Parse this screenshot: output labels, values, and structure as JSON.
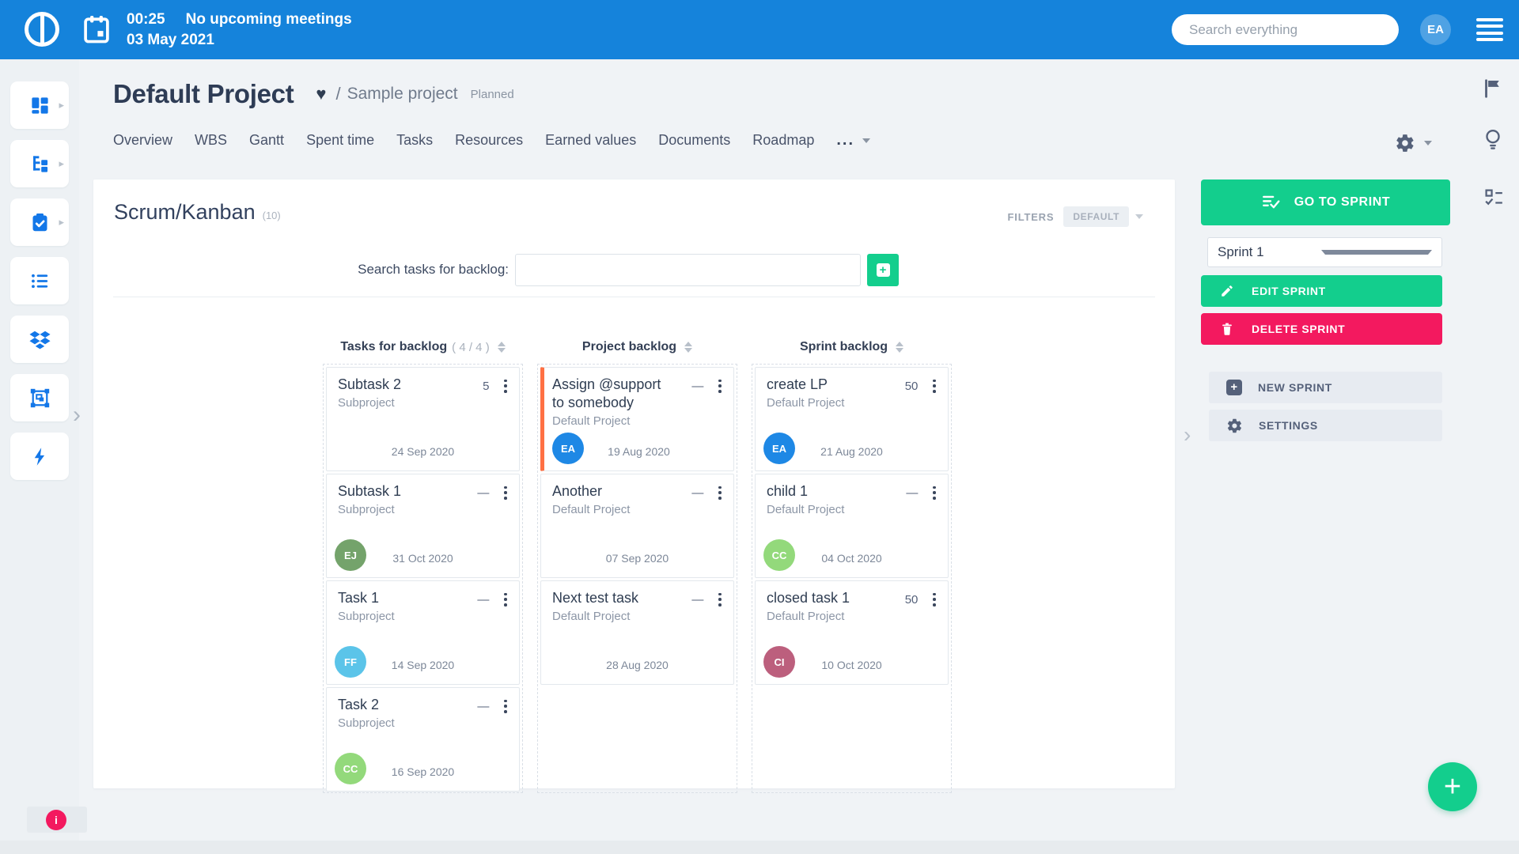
{
  "header": {
    "time": "00:25",
    "no_meetings": "No upcoming meetings",
    "date": "03 May 2021",
    "search_placeholder": "Search everything",
    "avatar_initials": "EA"
  },
  "sidebar": {
    "items": [
      {
        "name": "dashboards",
        "icon": "dashboard-icon",
        "expandable": true
      },
      {
        "name": "project-tree",
        "icon": "tree-icon",
        "expandable": true
      },
      {
        "name": "tasks",
        "icon": "clipboard-check-icon",
        "expandable": true
      },
      {
        "name": "list",
        "icon": "list-icon",
        "expandable": false
      },
      {
        "name": "dropbox",
        "icon": "dropbox-icon",
        "expandable": false
      },
      {
        "name": "modules",
        "icon": "object-group-icon",
        "expandable": false
      },
      {
        "name": "quick-actions",
        "icon": "lightning-icon",
        "expandable": false
      }
    ]
  },
  "project": {
    "title": "Default Project",
    "breadcrumb_separator": "/",
    "parent": "Sample project",
    "status": "Planned",
    "tabs": [
      "Overview",
      "WBS",
      "Gantt",
      "Spent time",
      "Tasks",
      "Resources",
      "Earned values",
      "Documents",
      "Roadmap"
    ],
    "more_tab": "..."
  },
  "board": {
    "title": "Scrum/Kanban",
    "count": "(10)",
    "filters_label": "FILTERS",
    "filters_value": "DEFAULT",
    "search_label": "Search tasks for backlog:",
    "columns": [
      {
        "title": "Tasks for backlog",
        "count": "( 4 / 4 )",
        "cards": [
          {
            "title": "Subtask 2",
            "project": "Subproject",
            "priority": "5",
            "date": "24 Sep 2020"
          },
          {
            "title": "Subtask 1",
            "project": "Subproject",
            "priority": "—",
            "avatar": "EJ",
            "avatar_color": "#74a36b",
            "date": "31 Oct 2020"
          },
          {
            "title": "Task 1",
            "project": "Subproject",
            "priority": "—",
            "avatar": "FF",
            "avatar_color": "#5bc4e9",
            "date": "14 Sep 2020"
          },
          {
            "title": "Task 2",
            "project": "Subproject",
            "priority": "—",
            "avatar": "CC",
            "avatar_color": "#93d97b",
            "date": "16 Sep 2020"
          }
        ]
      },
      {
        "title": "Project backlog",
        "count": "",
        "cards": [
          {
            "title": "Assign @support to somebody",
            "project": "Default Project",
            "priority": "—",
            "avatar": "EA",
            "avatar_color": "#1e88e5",
            "date": "19 Aug 2020",
            "accent": "#ff7043"
          },
          {
            "title": "Another",
            "project": "Default Project",
            "priority": "—",
            "date": "07 Sep 2020"
          },
          {
            "title": "Next test task",
            "project": "Default Project",
            "priority": "—",
            "date": "28 Aug 2020"
          }
        ]
      },
      {
        "title": "Sprint backlog",
        "count": "",
        "cards": [
          {
            "title": "create LP",
            "project": "Default Project",
            "priority": "50",
            "avatar": "EA",
            "avatar_color": "#1e88e5",
            "date": "21 Aug 2020"
          },
          {
            "title": "child 1",
            "project": "Default Project",
            "priority": "—",
            "avatar": "CC",
            "avatar_color": "#93d97b",
            "date": "04 Oct 2020"
          },
          {
            "title": "closed task 1",
            "project": "Default Project",
            "priority": "50",
            "avatar": "CI",
            "avatar_color": "#bc5f7d",
            "date": "10 Oct 2020"
          }
        ]
      }
    ]
  },
  "sprint_panel": {
    "go_to_sprint": "GO TO SPRINT",
    "sprint_name": "Sprint 1",
    "edit_sprint": "EDIT SPRINT",
    "delete_sprint": "DELETE SPRINT",
    "new_sprint": "NEW SPRINT",
    "settings": "SETTINGS"
  },
  "misc": {
    "info_glyph": "i",
    "fab_glyph": "+"
  },
  "colors": {
    "header_blue": "#1583db",
    "sidebar_icon_blue": "#1377e8",
    "accent_green": "#13ce8d",
    "accent_pink": "#f3195f",
    "card_accent_orange": "#ff7043"
  }
}
